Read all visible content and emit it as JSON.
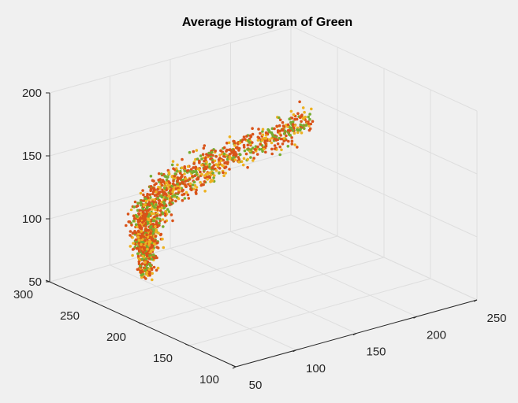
{
  "chart_data": {
    "type": "scatter",
    "title": "Average Histogram of Green",
    "view": "3d",
    "grid": true,
    "xlim": [
      50,
      250
    ],
    "ylim": [
      100,
      300
    ],
    "zlim": [
      50,
      200
    ],
    "x_ticks": [
      "50",
      "100",
      "150",
      "200",
      "250"
    ],
    "y_ticks": [
      "100",
      "150",
      "200",
      "250",
      "300"
    ],
    "z_ticks": [
      "50",
      "100",
      "150",
      "200"
    ],
    "series_colors": [
      "#d95319",
      "#edb120",
      "#77ac30"
    ],
    "spine": [
      [
        105,
        268,
        52,
        5,
        3,
        6
      ],
      [
        100,
        262,
        78,
        8,
        5,
        10
      ],
      [
        95,
        255,
        95,
        11,
        7,
        14
      ],
      [
        95,
        250,
        112,
        13,
        9,
        14
      ],
      [
        102,
        240,
        130,
        13,
        9,
        14
      ],
      [
        115,
        225,
        147,
        14,
        10,
        14
      ],
      [
        130,
        205,
        163,
        14,
        10,
        12
      ],
      [
        148,
        182,
        180,
        12,
        9,
        12
      ],
      [
        160,
        165,
        196,
        10,
        8,
        10
      ]
    ]
  }
}
